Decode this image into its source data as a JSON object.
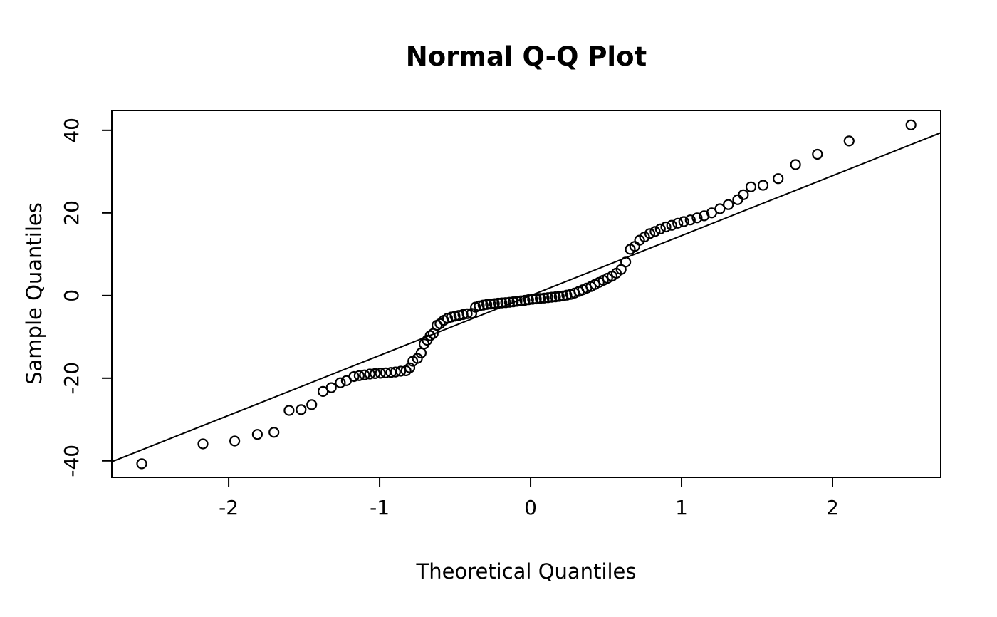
{
  "title": "Normal Q-Q Plot",
  "chart_data": {
    "type": "scatter",
    "subtype": "normal-qq-plot",
    "title": "Normal Q-Q Plot",
    "xlabel": "Theoretical Quantiles",
    "ylabel": "Sample Quantiles",
    "xlim": [
      -2.774,
      2.717
    ],
    "ylim": [
      -44.0,
      44.8
    ],
    "x_ticks": [
      -2,
      -1,
      0,
      1,
      2
    ],
    "y_ticks": [
      -40,
      -20,
      0,
      20,
      40
    ],
    "grid": false,
    "legend_position": "none",
    "marker": "open-circle",
    "marker_radius_px": 6.5,
    "colors": {
      "points": "#000000",
      "line": "#000000",
      "background": "#ffffff"
    },
    "ref_line": {
      "slope": 14.5,
      "intercept": 0
    },
    "points": [
      [
        -2.576,
        -40.7
      ],
      [
        -2.17,
        -35.9
      ],
      [
        -1.96,
        -35.2
      ],
      [
        -1.81,
        -33.6
      ],
      [
        -1.7,
        -33.1
      ],
      [
        -1.6,
        -27.8
      ],
      [
        -1.52,
        -27.6
      ],
      [
        -1.45,
        -26.4
      ],
      [
        -1.375,
        -23.2
      ],
      [
        -1.32,
        -22.3
      ],
      [
        -1.26,
        -21.1
      ],
      [
        -1.22,
        -20.6
      ],
      [
        -1.17,
        -19.6
      ],
      [
        -1.135,
        -19.4
      ],
      [
        -1.1,
        -19.2
      ],
      [
        -1.065,
        -19.0
      ],
      [
        -1.03,
        -18.9
      ],
      [
        -0.995,
        -18.8
      ],
      [
        -0.96,
        -18.7
      ],
      [
        -0.925,
        -18.6
      ],
      [
        -0.895,
        -18.5
      ],
      [
        -0.86,
        -18.3
      ],
      [
        -0.825,
        -18.2
      ],
      [
        -0.8,
        -17.5
      ],
      [
        -0.78,
        -15.9
      ],
      [
        -0.75,
        -15.2
      ],
      [
        -0.725,
        -13.9
      ],
      [
        -0.705,
        -11.7
      ],
      [
        -0.685,
        -10.8
      ],
      [
        -0.665,
        -9.7
      ],
      [
        -0.645,
        -9.2
      ],
      [
        -0.62,
        -7.2
      ],
      [
        -0.6,
        -6.8
      ],
      [
        -0.575,
        -6.0
      ],
      [
        -0.55,
        -5.5
      ],
      [
        -0.525,
        -5.2
      ],
      [
        -0.5,
        -5.0
      ],
      [
        -0.475,
        -4.8
      ],
      [
        -0.448,
        -4.6
      ],
      [
        -0.42,
        -4.4
      ],
      [
        -0.39,
        -4.3
      ],
      [
        -0.365,
        -2.8
      ],
      [
        -0.34,
        -2.5
      ],
      [
        -0.315,
        -2.3
      ],
      [
        -0.29,
        -2.15
      ],
      [
        -0.265,
        -2.05
      ],
      [
        -0.24,
        -1.95
      ],
      [
        -0.215,
        -1.85
      ],
      [
        -0.19,
        -1.78
      ],
      [
        -0.165,
        -1.7
      ],
      [
        -0.14,
        -1.62
      ],
      [
        -0.115,
        -1.52
      ],
      [
        -0.09,
        -1.4
      ],
      [
        -0.064,
        -1.28
      ],
      [
        -0.038,
        -1.15
      ],
      [
        -0.013,
        -1.0
      ],
      [
        0.013,
        -0.9
      ],
      [
        0.038,
        -0.8
      ],
      [
        0.064,
        -0.7
      ],
      [
        0.09,
        -0.6
      ],
      [
        0.115,
        -0.5
      ],
      [
        0.14,
        -0.4
      ],
      [
        0.165,
        -0.3
      ],
      [
        0.19,
        -0.2
      ],
      [
        0.215,
        -0.08
      ],
      [
        0.24,
        0.1
      ],
      [
        0.266,
        0.3
      ],
      [
        0.292,
        0.6
      ],
      [
        0.32,
        1.0
      ],
      [
        0.345,
        1.4
      ],
      [
        0.372,
        1.8
      ],
      [
        0.4,
        2.2
      ],
      [
        0.426,
        2.7
      ],
      [
        0.454,
        3.2
      ],
      [
        0.482,
        3.7
      ],
      [
        0.51,
        4.2
      ],
      [
        0.54,
        4.7
      ],
      [
        0.568,
        5.4
      ],
      [
        0.6,
        6.3
      ],
      [
        0.63,
        8.1
      ],
      [
        0.66,
        11.2
      ],
      [
        0.69,
        11.9
      ],
      [
        0.722,
        13.4
      ],
      [
        0.755,
        14.2
      ],
      [
        0.79,
        15.0
      ],
      [
        0.825,
        15.5
      ],
      [
        0.86,
        16.1
      ],
      [
        0.896,
        16.6
      ],
      [
        0.935,
        17.0
      ],
      [
        0.975,
        17.5
      ],
      [
        1.015,
        17.9
      ],
      [
        1.058,
        18.3
      ],
      [
        1.103,
        18.8
      ],
      [
        1.15,
        19.3
      ],
      [
        1.2,
        20.0
      ],
      [
        1.254,
        21.0
      ],
      [
        1.31,
        22.0
      ],
      [
        1.372,
        23.2
      ],
      [
        1.41,
        24.4
      ],
      [
        1.46,
        26.3
      ],
      [
        1.54,
        26.7
      ],
      [
        1.64,
        28.3
      ],
      [
        1.755,
        31.7
      ],
      [
        1.9,
        34.2
      ],
      [
        2.11,
        37.4
      ],
      [
        2.52,
        41.3
      ]
    ]
  }
}
